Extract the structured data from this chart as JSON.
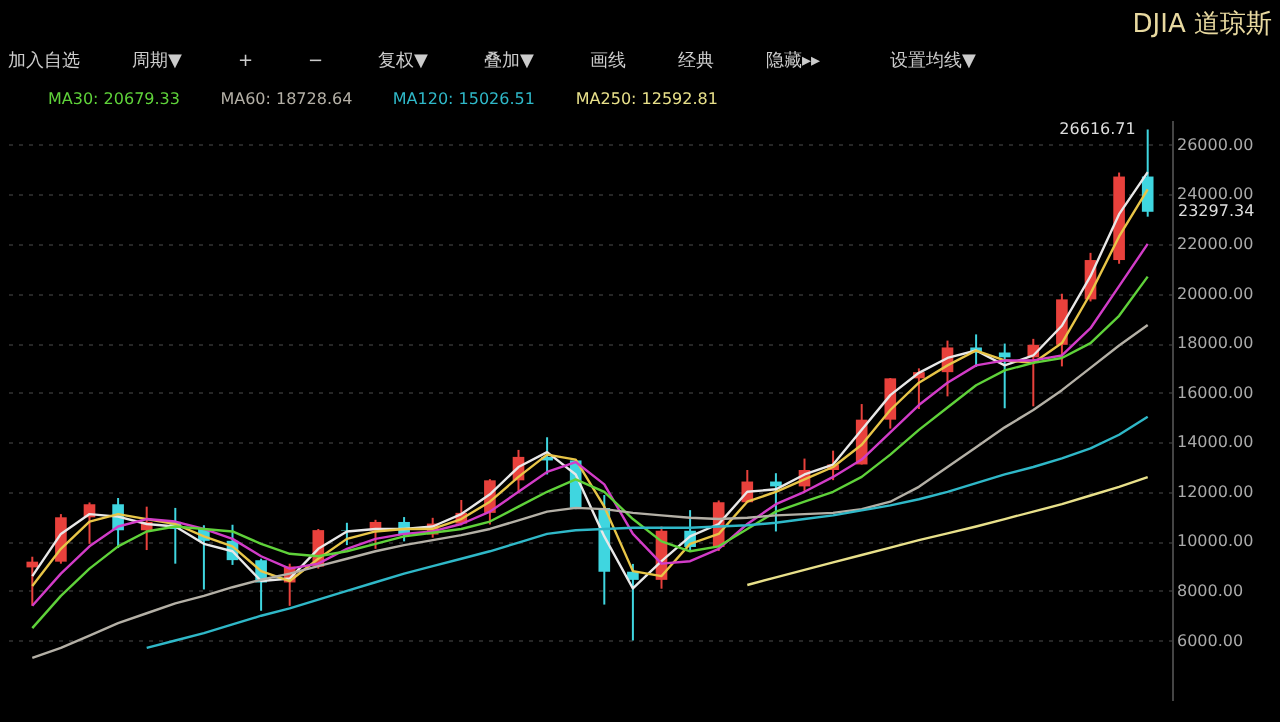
{
  "chart_data": {
    "type": "candlestick",
    "title": "DJIA 道琼斯",
    "categories": [
      null,
      null,
      null,
      null,
      null,
      null,
      null,
      null,
      null,
      null,
      null,
      null,
      null,
      null,
      null,
      null,
      null,
      null,
      null,
      null,
      null,
      null,
      null,
      null,
      null,
      null,
      null,
      null,
      null,
      null,
      null,
      null,
      null,
      null,
      null,
      null,
      null,
      null,
      null,
      null
    ],
    "ohlc": [
      [
        8950,
        9380,
        7400,
        9181
      ],
      [
        9181,
        11100,
        9100,
        10971
      ],
      [
        10971,
        11570,
        9900,
        11497
      ],
      [
        11497,
        11750,
        9730,
        10448
      ],
      [
        10448,
        11400,
        9650,
        10787
      ],
      [
        10787,
        11350,
        9100,
        10502
      ],
      [
        10502,
        10650,
        8060,
        10022
      ],
      [
        10022,
        10670,
        9050,
        9243
      ],
      [
        9243,
        9300,
        7200,
        8342
      ],
      [
        8342,
        9100,
        7400,
        8985
      ],
      [
        8985,
        10500,
        8900,
        10454
      ],
      [
        10454,
        10750,
        9850,
        10435
      ],
      [
        10435,
        10870,
        9700,
        10783
      ],
      [
        10783,
        10980,
        10000,
        10275
      ],
      [
        10275,
        10950,
        10150,
        10718
      ],
      [
        10718,
        11670,
        10650,
        11150
      ],
      [
        11150,
        12510,
        10680,
        12463
      ],
      [
        12463,
        13690,
        11940,
        13408
      ],
      [
        13408,
        14200,
        12700,
        13265
      ],
      [
        13265,
        13280,
        11300,
        11350
      ],
      [
        11350,
        11870,
        7450,
        8776
      ],
      [
        8776,
        9090,
        6000,
        8447
      ],
      [
        8447,
        10600,
        8090,
        10428
      ],
      [
        10428,
        11260,
        9620,
        9774
      ],
      [
        9774,
        11650,
        9610,
        11578
      ],
      [
        11578,
        12880,
        11550,
        12414
      ],
      [
        12414,
        12750,
        10400,
        12218
      ],
      [
        12218,
        13340,
        12000,
        12880
      ],
      [
        12880,
        13660,
        12470,
        13104
      ],
      [
        13104,
        15540,
        13100,
        14910
      ],
      [
        14910,
        16590,
        14550,
        16577
      ],
      [
        16577,
        16980,
        15340,
        16827
      ],
      [
        16827,
        18100,
        15850,
        17823
      ],
      [
        17823,
        18350,
        17040,
        17620
      ],
      [
        17620,
        17980,
        15370,
        17425
      ],
      [
        17425,
        18170,
        15450,
        17930
      ],
      [
        17930,
        19990,
        17060,
        19763
      ],
      [
        19763,
        21640,
        19680,
        21350
      ],
      [
        21350,
        24880,
        21200,
        24719
      ],
      [
        24719,
        26616.71,
        23100,
        23297.34
      ]
    ],
    "colors": [
      "#e8413c",
      "#e8413c",
      "#e8413c",
      "#3fd6e0",
      "#e8413c",
      "#3fd6e0",
      "#3fd6e0",
      "#3fd6e0",
      "#3fd6e0",
      "#e8413c",
      "#e8413c",
      "#3fd6e0",
      "#e8413c",
      "#3fd6e0",
      "#e8413c",
      "#e8413c",
      "#e8413c",
      "#e8413c",
      "#3fd6e0",
      "#3fd6e0",
      "#3fd6e0",
      "#3fd6e0",
      "#e8413c",
      "#3fd6e0",
      "#e8413c",
      "#e8413c",
      "#3fd6e0",
      "#e8413c",
      "#e8413c",
      "#e8413c",
      "#e8413c",
      "#e8413c",
      "#e8413c",
      "#3fd6e0",
      "#3fd6e0",
      "#e8413c",
      "#e8413c",
      "#e8413c",
      "#e8413c",
      "#3fd6e0"
    ],
    "series": [
      {
        "type": "line",
        "color": "#e8e8e8",
        "values": [
          8600,
          10300,
          11100,
          11000,
          10700,
          10600,
          9900,
          9600,
          8400,
          8500,
          9700,
          10400,
          10500,
          10500,
          10600,
          11100,
          11900,
          13000,
          13600,
          12700,
          10200,
          8100,
          9200,
          10200,
          10700,
          12000,
          12100,
          12700,
          13100,
          14500,
          15900,
          16800,
          17400,
          17700,
          17100,
          17500,
          18700,
          20700,
          23200,
          24900
        ]
      },
      {
        "type": "line",
        "color": "#e8c547",
        "values": [
          8200,
          9700,
          10800,
          11100,
          10900,
          10700,
          10200,
          9800,
          8800,
          8400,
          9300,
          10100,
          10400,
          10500,
          10500,
          10900,
          11600,
          12600,
          13500,
          13300,
          11400,
          8800,
          8600,
          9900,
          10300,
          11600,
          12000,
          12500,
          13000,
          13900,
          15300,
          16400,
          17100,
          17700,
          17300,
          17200,
          18000,
          20000,
          22300,
          24200
        ]
      },
      {
        "type": "line",
        "color": "#d23cc8",
        "values": [
          7400,
          8700,
          9800,
          10600,
          10900,
          10800,
          10500,
          10100,
          9400,
          8900,
          9100,
          9700,
          10100,
          10300,
          10400,
          10700,
          11200,
          12000,
          12800,
          13200,
          12300,
          10300,
          9100,
          9200,
          9700,
          10700,
          11500,
          12000,
          12600,
          13300,
          14400,
          15500,
          16400,
          17100,
          17300,
          17300,
          17500,
          18600,
          20300,
          22000
        ]
      },
      {
        "type": "line",
        "name": "MA30: 20679.33",
        "color": "#5fd23a",
        "values": [
          6500,
          7800,
          8900,
          9800,
          10400,
          10600,
          10500,
          10400,
          9900,
          9500,
          9400,
          9600,
          9900,
          10200,
          10350,
          10500,
          10800,
          11400,
          12000,
          12500,
          12000,
          10900,
          10000,
          9600,
          9800,
          10500,
          11200,
          11600,
          12000,
          12600,
          13500,
          14500,
          15400,
          16300,
          16900,
          17200,
          17400,
          18000,
          19100,
          20679.33
        ]
      },
      {
        "type": "line",
        "name": "MA60: 18728.64",
        "color": "#b4b0a6",
        "values": [
          5300,
          5700,
          6200,
          6700,
          7100,
          7500,
          7800,
          8150,
          8450,
          8700,
          9000,
          9300,
          9600,
          9850,
          10050,
          10250,
          10500,
          10850,
          11200,
          11350,
          11300,
          11150,
          11050,
          10950,
          10900,
          10950,
          11050,
          11100,
          11150,
          11300,
          11600,
          12200,
          13000,
          13800,
          14600,
          15300,
          16100,
          17000,
          17900,
          18728.64
        ]
      },
      {
        "type": "line",
        "name": "MA120: 15026.51",
        "color": "#2fb8c8",
        "values": [
          null,
          null,
          null,
          null,
          5700,
          6000,
          6300,
          6650,
          7000,
          7300,
          7650,
          8000,
          8350,
          8700,
          9000,
          9300,
          9600,
          9950,
          10300,
          10450,
          10500,
          10550,
          10550,
          10550,
          10600,
          10650,
          10750,
          10900,
          11050,
          11250,
          11450,
          11700,
          12000,
          12350,
          12700,
          13000,
          13350,
          13750,
          14300,
          15026.51
        ]
      },
      {
        "type": "line",
        "name": "MA250: 12592.81",
        "color": "#e8e08a",
        "values": [
          null,
          null,
          null,
          null,
          null,
          null,
          null,
          null,
          null,
          null,
          null,
          null,
          null,
          null,
          null,
          null,
          null,
          null,
          null,
          null,
          null,
          null,
          null,
          null,
          null,
          8240,
          8550,
          8850,
          9150,
          9450,
          9750,
          10050,
          10320,
          10600,
          10900,
          11200,
          11500,
          11850,
          12200,
          12592.81
        ]
      }
    ],
    "ylim": [
      3600,
      27000
    ],
    "yticks": [
      {
        "value": 6000,
        "label": "6000.00"
      },
      {
        "value": 8000,
        "label": "8000.00"
      },
      {
        "value": 10000,
        "label": "10000.00"
      },
      {
        "value": 12000,
        "label": "12000.00"
      },
      {
        "value": 14000,
        "label": "14000.00"
      },
      {
        "value": 16000,
        "label": "16000.00"
      },
      {
        "value": 18000,
        "label": "18000.00"
      },
      {
        "value": 20000,
        "label": "20000.00"
      },
      {
        "value": 22000,
        "label": "22000.00"
      },
      {
        "value": 24000,
        "label": "24000.00"
      },
      {
        "value": 26000,
        "label": "26000.00"
      }
    ],
    "grid": "y",
    "legend": "top left",
    "tick_labels": "y",
    "annotations": [
      "加入自选",
      "周期▼",
      "+",
      "−",
      "复权▼",
      "叠加▼",
      "画线",
      "经典",
      "隐藏▸▸",
      "设置均线▼",
      "26616.71",
      "23297.34"
    ]
  }
}
